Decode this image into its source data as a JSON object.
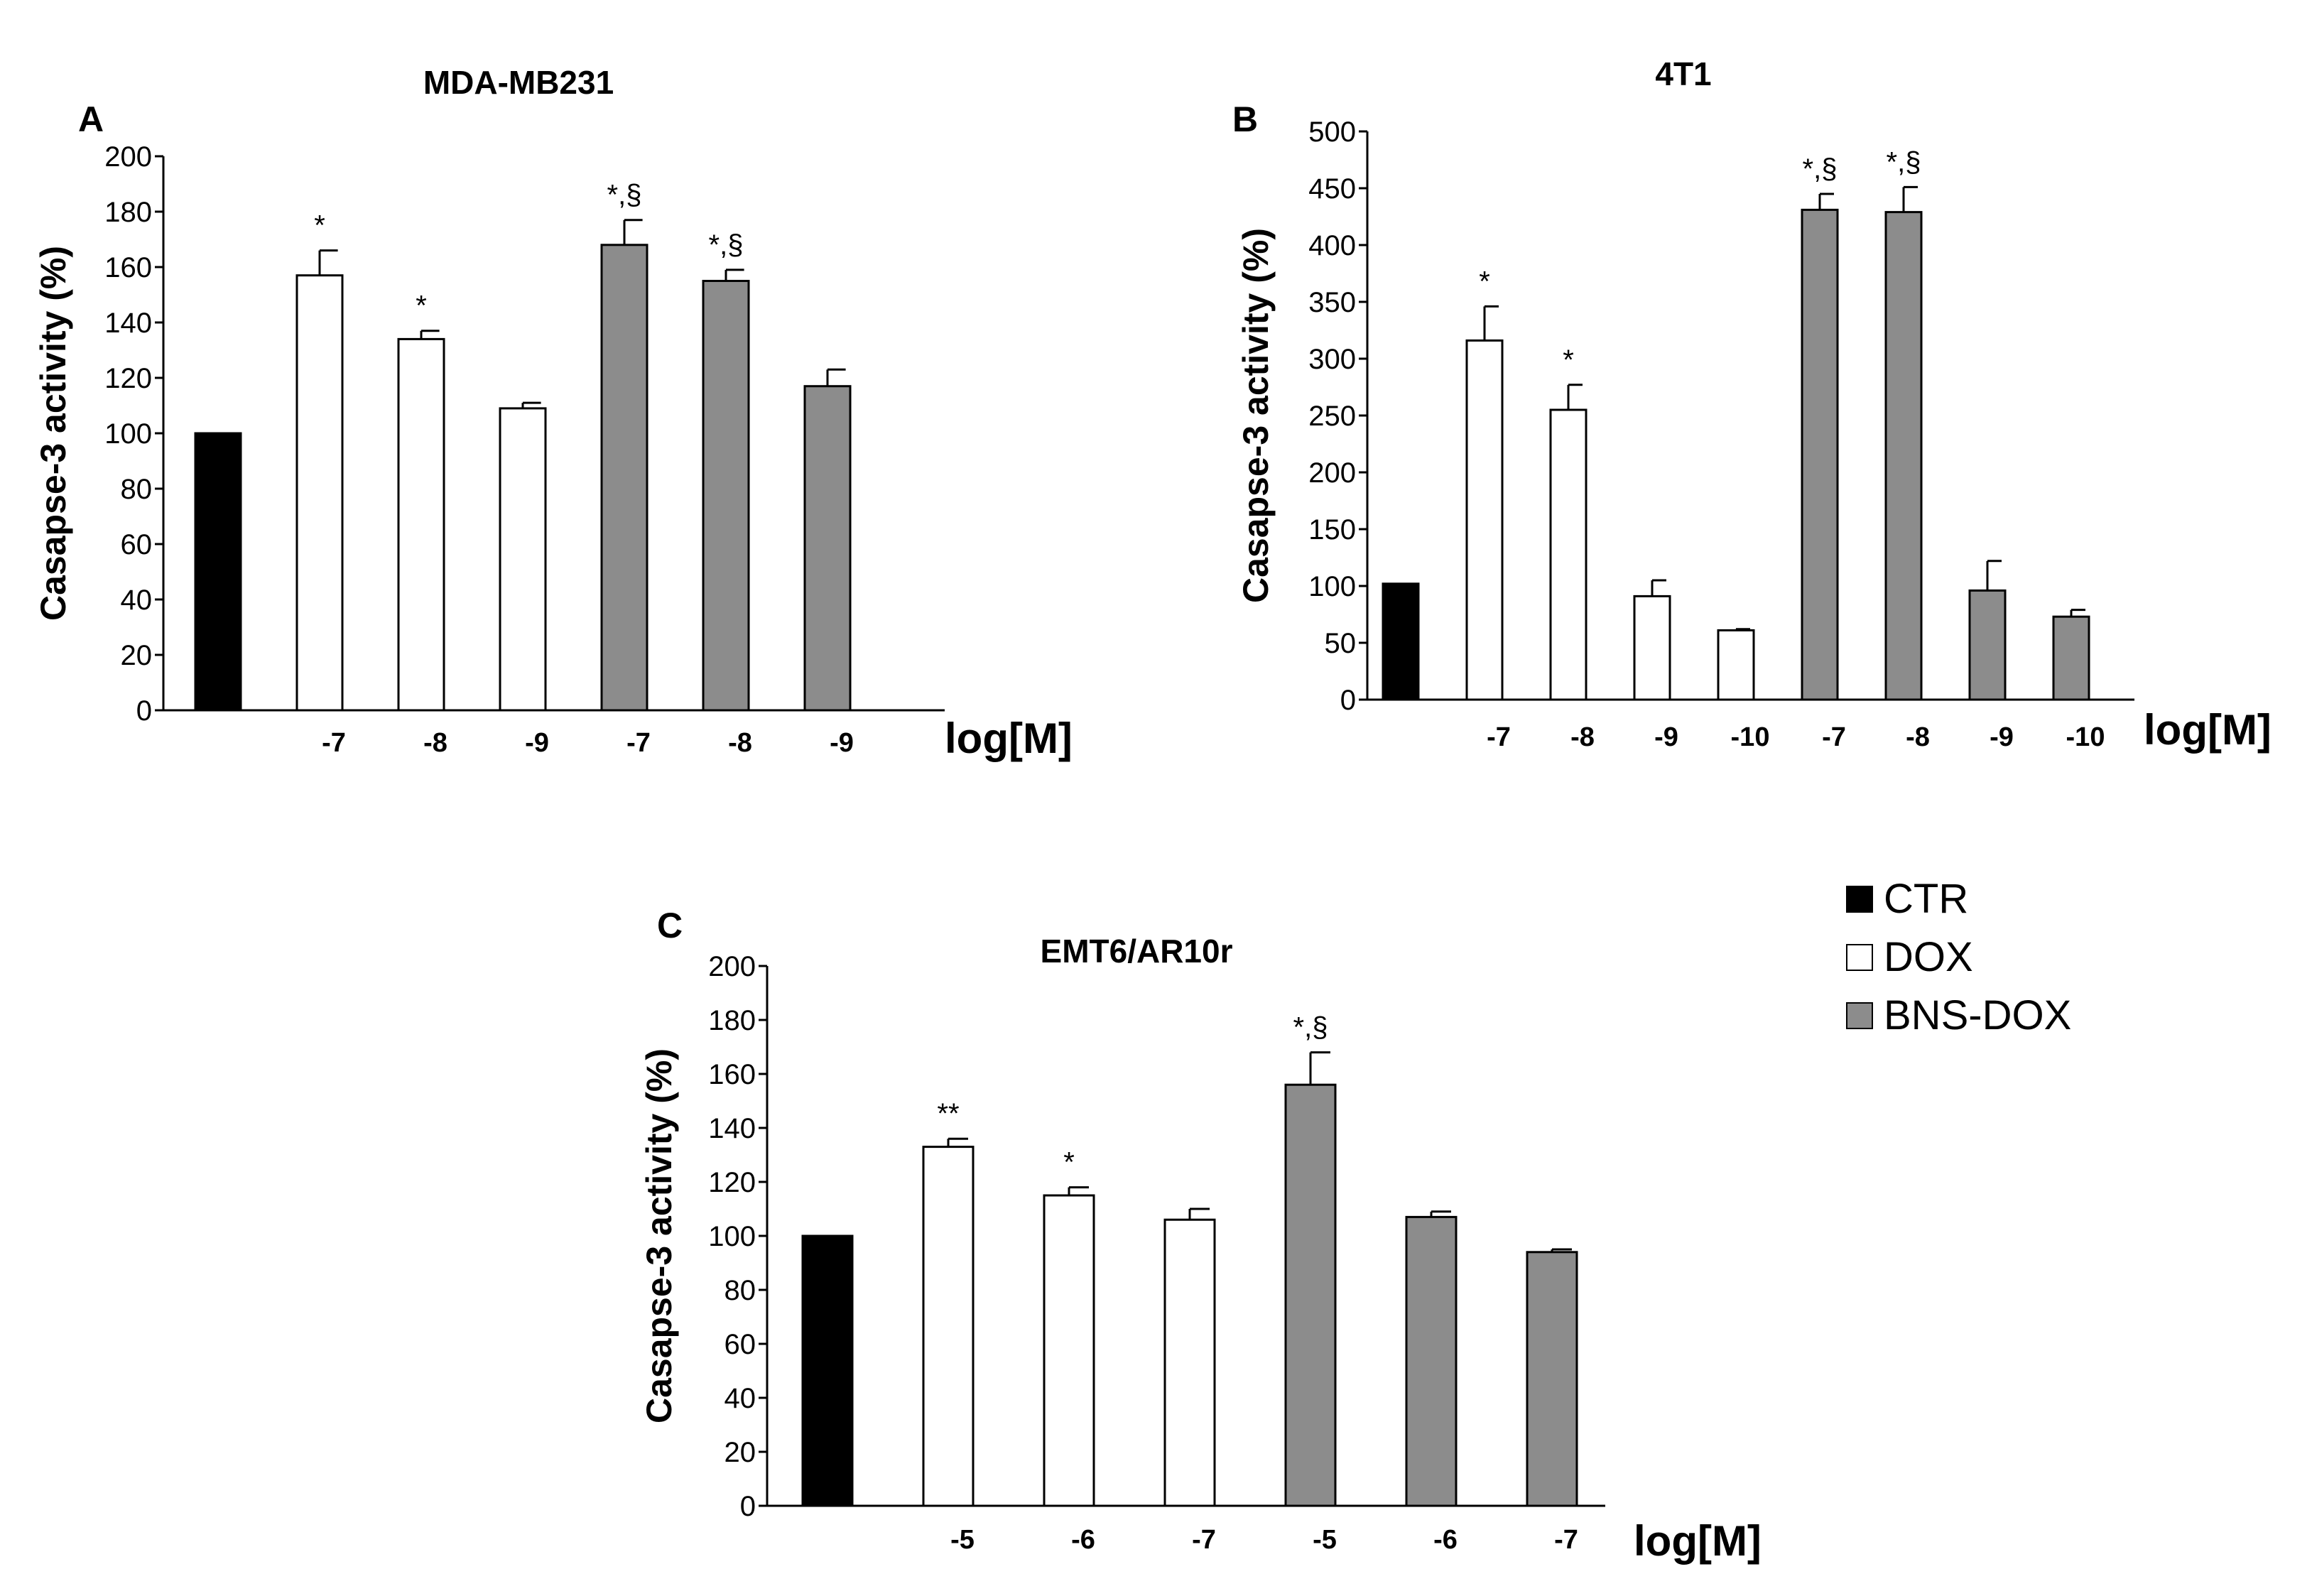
{
  "chart_data": [
    {
      "type": "bar",
      "panel": "A",
      "title": "MDA-MB231",
      "ylabel": "Casapse-3 activity  (%)",
      "xlabel": "log[M]",
      "ylim": [
        0,
        200
      ],
      "yticks": [
        0,
        20,
        40,
        60,
        80,
        100,
        120,
        140,
        160,
        180,
        200
      ],
      "categories": [
        "",
        "-7",
        "-8",
        "-9",
        "-7",
        "-8",
        "-9"
      ],
      "groups": [
        "CTR",
        "DOX",
        "DOX",
        "DOX",
        "BNS-DOX",
        "BNS-DOX",
        "BNS-DOX"
      ],
      "values": [
        100,
        157,
        134,
        109,
        168,
        155,
        117
      ],
      "errors": [
        0,
        9,
        3,
        2,
        9,
        4,
        6
      ],
      "annotations": [
        "",
        "*",
        "*",
        "",
        "*,§",
        "*,§",
        ""
      ]
    },
    {
      "type": "bar",
      "panel": "B",
      "title": "4T1",
      "ylabel": "Casapse-3 activity  (%)",
      "xlabel": "log[M]",
      "ylim": [
        0,
        500
      ],
      "yticks": [
        0,
        50,
        100,
        150,
        200,
        250,
        300,
        350,
        400,
        450,
        500
      ],
      "categories": [
        "",
        "-7",
        "-8",
        "-9",
        "-10",
        "-7",
        "-8",
        "-9",
        "-10"
      ],
      "groups": [
        "CTR",
        "DOX",
        "DOX",
        "DOX",
        "DOX",
        "BNS-DOX",
        "BNS-DOX",
        "BNS-DOX",
        "BNS-DOX"
      ],
      "values": [
        102,
        316,
        255,
        91,
        61,
        431,
        429,
        96,
        73
      ],
      "errors": [
        0,
        30,
        22,
        14,
        1,
        14,
        22,
        26,
        6
      ],
      "annotations": [
        "",
        "*",
        "*",
        "",
        "",
        "*,§",
        "*,§",
        "",
        ""
      ]
    },
    {
      "type": "bar",
      "panel": "C",
      "title": "EMT6/AR10r",
      "ylabel": "Casapse-3 activity  (%)",
      "xlabel": "log[M]",
      "ylim": [
        0,
        200
      ],
      "yticks": [
        0,
        20,
        40,
        60,
        80,
        100,
        120,
        140,
        160,
        180,
        200
      ],
      "categories": [
        "",
        "-5",
        "-6",
        "-7",
        "-5",
        "-6",
        "-7"
      ],
      "groups": [
        "CTR",
        "DOX",
        "DOX",
        "DOX",
        "BNS-DOX",
        "BNS-DOX",
        "BNS-DOX"
      ],
      "values": [
        100,
        133,
        115,
        106,
        156,
        107,
        94
      ],
      "errors": [
        0,
        3,
        3,
        4,
        12,
        2,
        1
      ],
      "annotations": [
        "",
        "**",
        "*",
        "",
        "*,§",
        "",
        ""
      ]
    }
  ],
  "legend": {
    "placement": "right",
    "items": [
      {
        "label": "CTR",
        "color": "#000000"
      },
      {
        "label": "DOX",
        "color": "#ffffff"
      },
      {
        "label": "BNS-DOX",
        "color": "#8c8c8c"
      }
    ]
  },
  "colors": {
    "CTR": "#000000",
    "DOX": "#ffffff",
    "BNS-DOX": "#8c8c8c",
    "axis": "#000000",
    "background": "#ffffff"
  }
}
